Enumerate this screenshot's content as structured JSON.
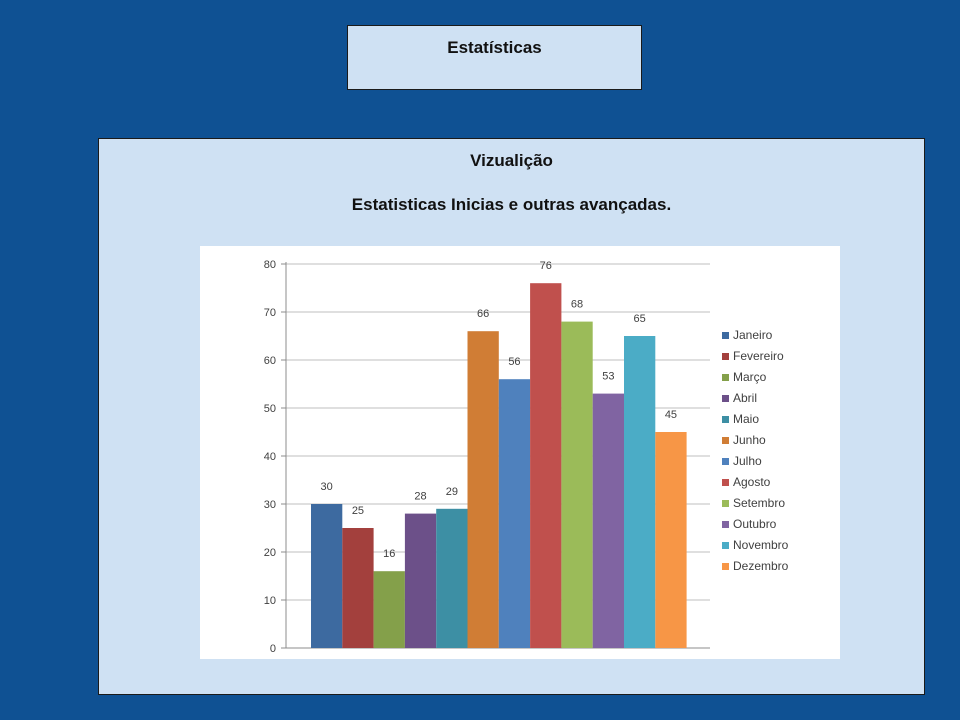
{
  "header": {
    "title": "Estatísticas"
  },
  "panel": {
    "title": "Vizualição",
    "subtitle": "Estatisticas Inicias e outras avançadas."
  },
  "chart_data": {
    "type": "bar",
    "categories": [
      "Janeiro",
      "Fevereiro",
      "Março",
      "Abril",
      "Maio",
      "Junho",
      "Julho",
      "Agosto",
      "Setembro",
      "Outubro",
      "Novembro",
      "Dezembro"
    ],
    "values": [
      30,
      25,
      16,
      28,
      29,
      66,
      56,
      76,
      68,
      53,
      65,
      45
    ],
    "colors": [
      "#3d6aa0",
      "#a3403d",
      "#84a04a",
      "#6c5089",
      "#3d8fa4",
      "#d07d35",
      "#4f81bd",
      "#c0504d",
      "#9bbb59",
      "#8064a2",
      "#4bacc6",
      "#f79646"
    ],
    "ylim": [
      0,
      80
    ],
    "yticks": [
      0,
      10,
      20,
      30,
      40,
      50,
      60,
      70,
      80
    ],
    "grid": true,
    "legend": "right"
  }
}
